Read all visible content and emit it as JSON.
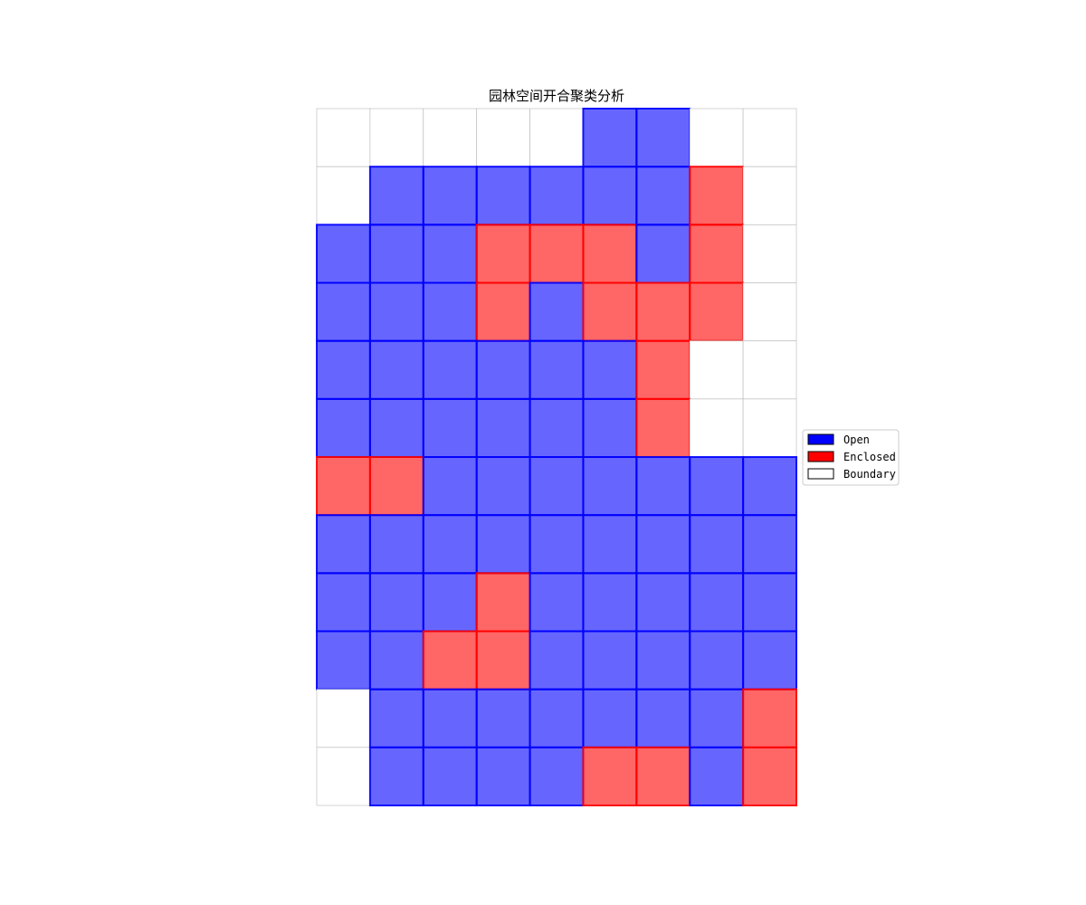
{
  "chart_data": {
    "type": "heatmap",
    "title": "园林空间开合聚类分析",
    "xlabel": "",
    "ylabel": "",
    "grid": false,
    "legend_placement": "center-right",
    "legend": [
      {
        "label": "Open",
        "color": "#0000ff"
      },
      {
        "label": "Enclosed",
        "color": "#ff0000"
      },
      {
        "label": "Boundary",
        "color": "#ffffff"
      }
    ],
    "category_colors": {
      "O": "#0000ff",
      "E": "#ff0000",
      "B": "#ffffff"
    },
    "category_key": {
      "O": "Open",
      "E": "Enclosed",
      "B": "Boundary"
    },
    "fill_alpha": 0.6,
    "columns": 9,
    "rows_count": 12,
    "rows": [
      "BBBBBOOBB",
      "BOOOOOOEB",
      "OOOEEEOEB",
      "OOOEOEEEB",
      "OOOOOOEBB",
      "OOOOOOEBB",
      "EEOOOOOOO",
      "OOOOOOOOO",
      "OOOEOOOOO",
      "OOEEOOOOO",
      "BOOOOOOOE",
      "BOOOOEEOE"
    ]
  }
}
